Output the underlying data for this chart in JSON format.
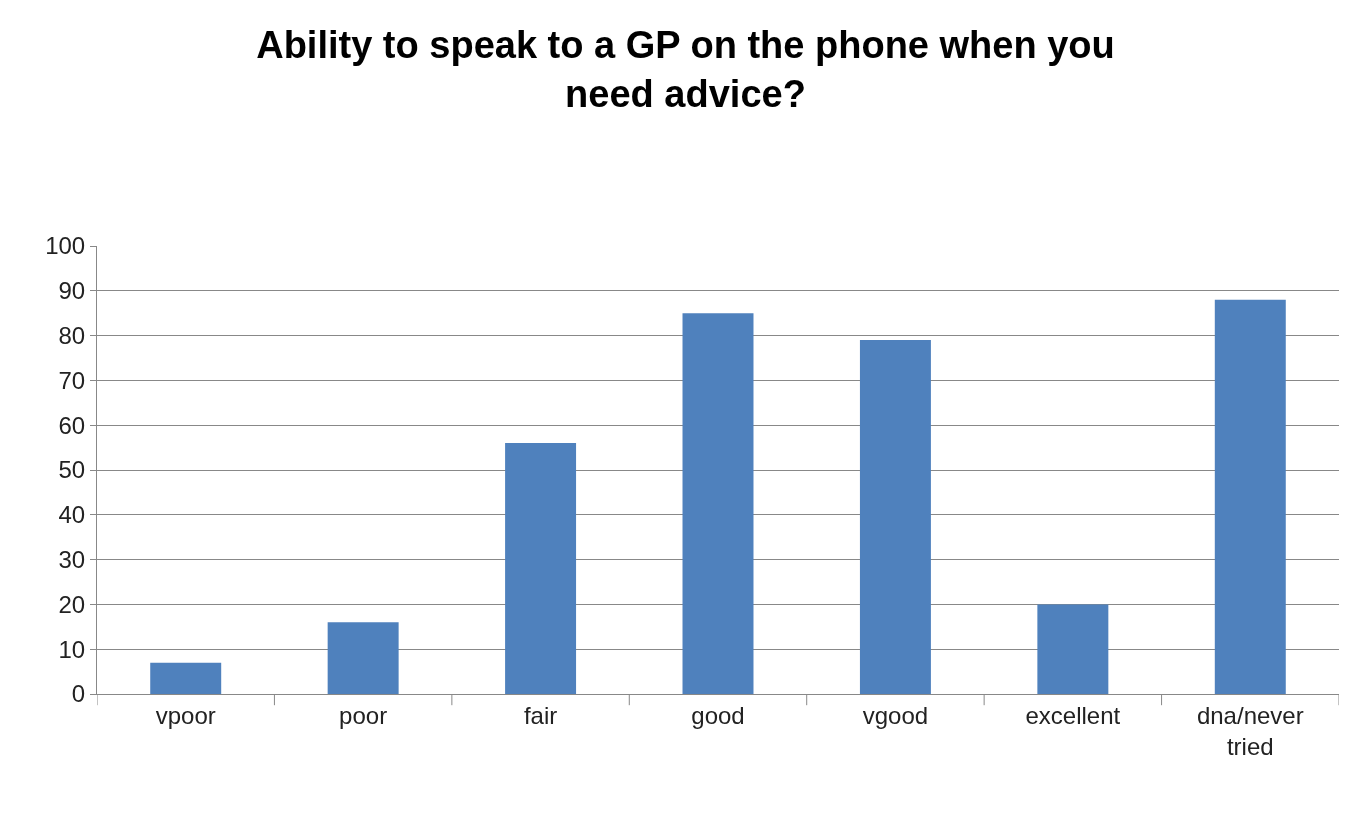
{
  "chart_data": {
    "type": "bar",
    "title": "Ability to speak to a GP on the phone when you need advice?",
    "categories": [
      "vpoor",
      "poor",
      "fair",
      "good",
      "vgood",
      "excellent",
      "dna/never tried"
    ],
    "values": [
      7,
      16,
      56,
      85,
      79,
      20,
      88
    ],
    "color": "#4f81bd",
    "ylim": [
      0,
      100
    ],
    "yticks": [
      0,
      10,
      20,
      30,
      40,
      50,
      60,
      70,
      80,
      90,
      100
    ],
    "grid": "y"
  }
}
